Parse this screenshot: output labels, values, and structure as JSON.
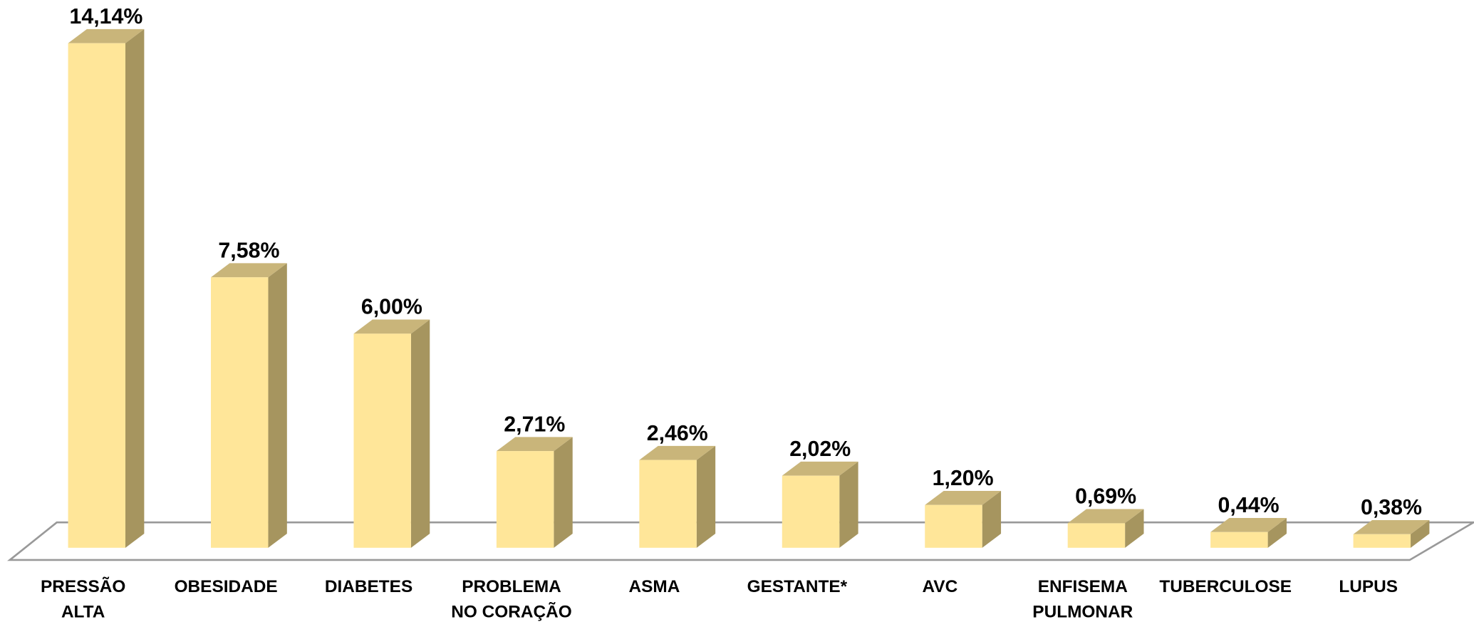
{
  "chart_data": {
    "type": "bar3d",
    "categories": [
      "PRESSÃO\nALTA",
      "OBESIDADE",
      "DIABETES",
      "PROBLEMA\nNO CORAÇÃO",
      "ASMA",
      "GESTANTE*",
      "AVC",
      "ENFISEMA\nPULMONAR",
      "TUBERCULOSE",
      "LUPUS"
    ],
    "values": [
      14.14,
      7.58,
      6.0,
      2.71,
      2.46,
      2.02,
      1.2,
      0.69,
      0.44,
      0.38
    ],
    "value_labels": [
      "14,14%",
      "7,58%",
      "6,00%",
      "2,71%",
      "2,46%",
      "2,02%",
      "1,20%",
      "0,69%",
      "0,44%",
      "0,38%"
    ],
    "color": "#FFE699",
    "side_color": "#A6955F",
    "top_color": "#C9B57A"
  }
}
